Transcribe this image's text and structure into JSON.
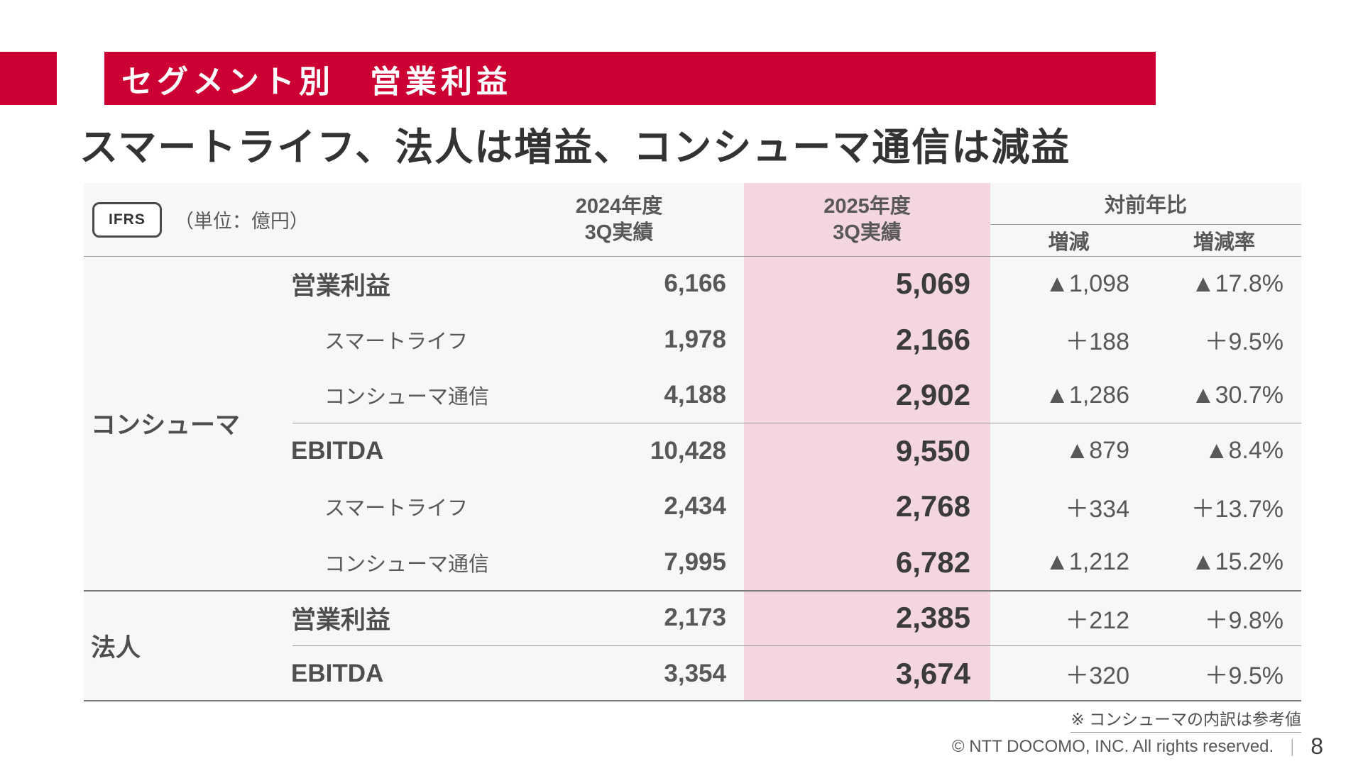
{
  "colors": {
    "accent": "#cc0033",
    "highlight_column": "#f3d6de",
    "table_bg": "#f7f7f7",
    "text": "#595757"
  },
  "banner": {
    "title": "セグメント別　営業利益"
  },
  "headline": "スマートライフ、法人は増益、コンシューマ通信は減益",
  "table": {
    "badge": "IFRS",
    "unit": "（単位：億円）",
    "headers": {
      "y2024": "2024年度\n3Q実績",
      "y2025": "2025年度\n3Q実績",
      "yoy": "対前年比",
      "change": "増減",
      "rate": "増減率"
    },
    "groups": [
      {
        "label": "コンシューマ"
      },
      {
        "label": "法人"
      }
    ],
    "rows": [
      {
        "label": "営業利益",
        "v2024": "6,166",
        "v2025": "5,069",
        "change": "▲1,098",
        "rate": "▲17.8%"
      },
      {
        "label": "スマートライフ",
        "v2024": "1,978",
        "v2025": "2,166",
        "change": "＋188",
        "rate": "＋9.5%"
      },
      {
        "label": "コンシューマ通信",
        "v2024": "4,188",
        "v2025": "2,902",
        "change": "▲1,286",
        "rate": "▲30.7%"
      },
      {
        "label": "EBITDA",
        "v2024": "10,428",
        "v2025": "9,550",
        "change": "▲879",
        "rate": "▲8.4%"
      },
      {
        "label": "スマートライフ",
        "v2024": "2,434",
        "v2025": "2,768",
        "change": "＋334",
        "rate": "＋13.7%"
      },
      {
        "label": "コンシューマ通信",
        "v2024": "7,995",
        "v2025": "6,782",
        "change": "▲1,212",
        "rate": "▲15.2%"
      },
      {
        "label": "営業利益",
        "v2024": "2,173",
        "v2025": "2,385",
        "change": "＋212",
        "rate": "＋9.8%"
      },
      {
        "label": "EBITDA",
        "v2024": "3,354",
        "v2025": "3,674",
        "change": "＋320",
        "rate": "＋9.5%"
      }
    ]
  },
  "footer": {
    "note": "※ コンシューマの内訳は参考値",
    "copyright": "© NTT DOCOMO, INC.  All rights reserved.",
    "separator": "｜",
    "page": "8"
  }
}
